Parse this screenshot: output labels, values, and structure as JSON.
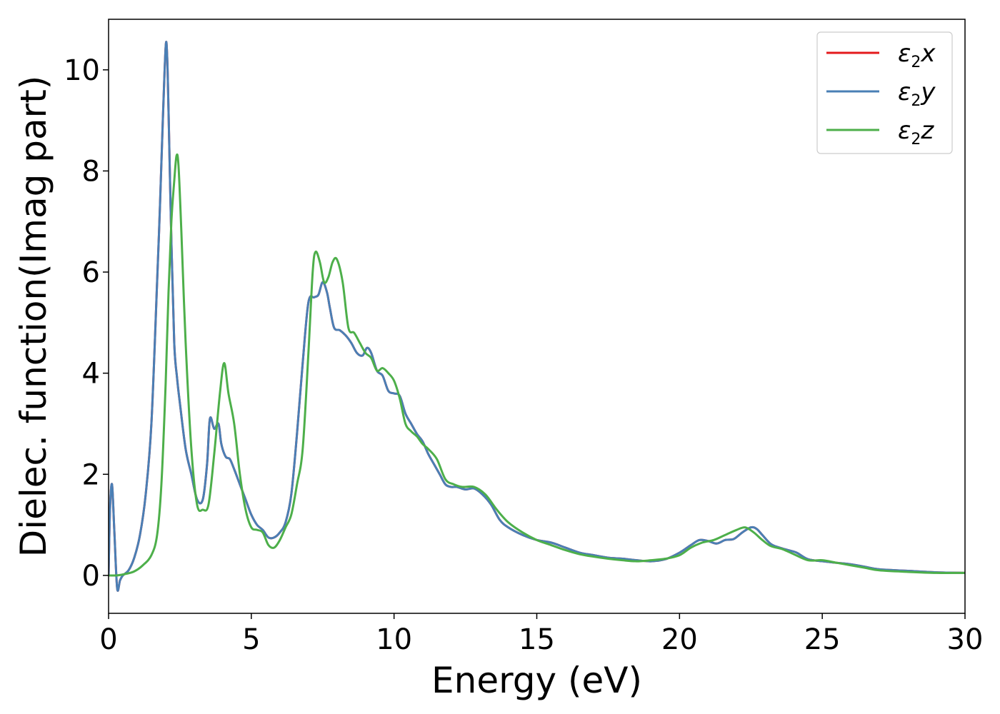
{
  "chart_data": {
    "type": "line",
    "title": "",
    "xlabel": "Energy (eV)",
    "ylabel": "Dielec. function(Imag part)",
    "xlim": [
      0,
      30
    ],
    "ylim": [
      -0.75,
      11.0
    ],
    "xticks": [
      0,
      5,
      10,
      15,
      20,
      25,
      30
    ],
    "yticks": [
      0,
      2,
      4,
      6,
      8,
      10
    ],
    "xtick_labels": [
      "0",
      "5",
      "10",
      "15",
      "20",
      "25",
      "30"
    ],
    "ytick_labels": [
      "0",
      "2",
      "4",
      "6",
      "8",
      "10"
    ],
    "grid": false,
    "legend_position": "top-right",
    "series": [
      {
        "name": "ε2x",
        "legend_base": "ε",
        "legend_sub": "2",
        "legend_var": "x",
        "color": "#e41a1c",
        "x": [
          0,
          0.05,
          0.12,
          0.2,
          0.3,
          0.4,
          0.5,
          0.7,
          0.9,
          1.1,
          1.3,
          1.5,
          1.7,
          1.8,
          1.9,
          2.0,
          2.05,
          2.1,
          2.2,
          2.3,
          2.4,
          2.5,
          2.7,
          2.9,
          3.1,
          3.3,
          3.45,
          3.55,
          3.7,
          3.85,
          3.95,
          4.1,
          4.25,
          4.4,
          4.6,
          4.8,
          5.0,
          5.2,
          5.4,
          5.6,
          5.8,
          6.0,
          6.2,
          6.4,
          6.6,
          6.8,
          7.0,
          7.2,
          7.35,
          7.5,
          7.65,
          7.75,
          7.9,
          8.1,
          8.3,
          8.5,
          8.7,
          8.9,
          9.05,
          9.2,
          9.4,
          9.6,
          9.8,
          10.0,
          10.2,
          10.4,
          10.6,
          10.8,
          11.0,
          11.2,
          11.4,
          11.6,
          11.8,
          12.0,
          12.2,
          12.5,
          12.8,
          13.1,
          13.4,
          13.7,
          14.0,
          14.5,
          15.0,
          15.5,
          16.0,
          16.5,
          17.0,
          17.5,
          18.0,
          18.5,
          19.0,
          19.5,
          20.0,
          20.4,
          20.7,
          21.0,
          21.3,
          21.6,
          21.9,
          22.2,
          22.5,
          22.7,
          22.9,
          23.2,
          23.5,
          23.8,
          24.1,
          24.5,
          25.0,
          25.5,
          26.0,
          26.5,
          27.0,
          28.0,
          29.0,
          30.0
        ],
        "y": [
          0,
          1.3,
          1.8,
          0.9,
          -0.25,
          -0.1,
          0.0,
          0.1,
          0.35,
          0.8,
          1.6,
          3.0,
          5.8,
          7.3,
          9.0,
          10.45,
          10.3,
          9.2,
          6.6,
          4.6,
          3.9,
          3.4,
          2.5,
          2.0,
          1.5,
          1.5,
          2.2,
          3.1,
          2.9,
          3.0,
          2.6,
          2.35,
          2.3,
          2.1,
          1.8,
          1.5,
          1.2,
          1.0,
          0.9,
          0.75,
          0.75,
          0.85,
          1.05,
          1.6,
          2.8,
          4.2,
          5.4,
          5.5,
          5.55,
          5.8,
          5.6,
          5.3,
          4.9,
          4.85,
          4.75,
          4.6,
          4.4,
          4.35,
          4.5,
          4.4,
          4.05,
          3.95,
          3.65,
          3.6,
          3.55,
          3.2,
          3.0,
          2.8,
          2.65,
          2.4,
          2.2,
          2.0,
          1.8,
          1.75,
          1.75,
          1.7,
          1.72,
          1.6,
          1.4,
          1.1,
          0.95,
          0.8,
          0.7,
          0.65,
          0.55,
          0.45,
          0.4,
          0.35,
          0.33,
          0.3,
          0.28,
          0.32,
          0.45,
          0.6,
          0.7,
          0.68,
          0.63,
          0.7,
          0.72,
          0.85,
          0.95,
          0.92,
          0.8,
          0.62,
          0.55,
          0.5,
          0.45,
          0.32,
          0.28,
          0.25,
          0.22,
          0.17,
          0.12,
          0.09,
          0.06,
          0.05
        ]
      },
      {
        "name": "ε2y",
        "legend_base": "ε",
        "legend_sub": "2",
        "legend_var": "y",
        "color": "#4a7fb5",
        "x": [
          0,
          0.05,
          0.12,
          0.2,
          0.3,
          0.4,
          0.5,
          0.7,
          0.9,
          1.1,
          1.3,
          1.5,
          1.7,
          1.8,
          1.9,
          2.0,
          2.05,
          2.1,
          2.2,
          2.3,
          2.4,
          2.5,
          2.7,
          2.9,
          3.1,
          3.3,
          3.45,
          3.55,
          3.7,
          3.85,
          3.95,
          4.1,
          4.25,
          4.4,
          4.6,
          4.8,
          5.0,
          5.2,
          5.4,
          5.6,
          5.8,
          6.0,
          6.2,
          6.4,
          6.6,
          6.8,
          7.0,
          7.2,
          7.35,
          7.5,
          7.65,
          7.75,
          7.9,
          8.1,
          8.3,
          8.5,
          8.7,
          8.9,
          9.05,
          9.2,
          9.4,
          9.6,
          9.8,
          10.0,
          10.2,
          10.4,
          10.6,
          10.8,
          11.0,
          11.2,
          11.4,
          11.6,
          11.8,
          12.0,
          12.2,
          12.5,
          12.8,
          13.1,
          13.4,
          13.7,
          14.0,
          14.5,
          15.0,
          15.5,
          16.0,
          16.5,
          17.0,
          17.5,
          18.0,
          18.5,
          19.0,
          19.5,
          20.0,
          20.4,
          20.7,
          21.0,
          21.3,
          21.6,
          21.9,
          22.2,
          22.5,
          22.7,
          22.9,
          23.2,
          23.5,
          23.8,
          24.1,
          24.5,
          25.0,
          25.5,
          26.0,
          26.5,
          27.0,
          28.0,
          29.0,
          30.0
        ],
        "y": [
          0,
          1.3,
          1.8,
          0.9,
          -0.25,
          -0.1,
          0.0,
          0.1,
          0.35,
          0.8,
          1.6,
          3.0,
          5.8,
          7.3,
          9.0,
          10.45,
          10.3,
          9.2,
          6.6,
          4.6,
          3.9,
          3.4,
          2.5,
          2.0,
          1.5,
          1.5,
          2.2,
          3.1,
          2.9,
          3.0,
          2.6,
          2.35,
          2.3,
          2.1,
          1.8,
          1.5,
          1.2,
          1.0,
          0.9,
          0.75,
          0.75,
          0.85,
          1.05,
          1.6,
          2.8,
          4.2,
          5.4,
          5.5,
          5.55,
          5.8,
          5.6,
          5.3,
          4.9,
          4.85,
          4.75,
          4.6,
          4.4,
          4.35,
          4.5,
          4.4,
          4.05,
          3.95,
          3.65,
          3.6,
          3.55,
          3.2,
          3.0,
          2.8,
          2.65,
          2.4,
          2.2,
          2.0,
          1.8,
          1.75,
          1.75,
          1.7,
          1.72,
          1.6,
          1.4,
          1.1,
          0.95,
          0.8,
          0.7,
          0.65,
          0.55,
          0.45,
          0.4,
          0.35,
          0.33,
          0.3,
          0.28,
          0.32,
          0.45,
          0.6,
          0.7,
          0.68,
          0.63,
          0.7,
          0.72,
          0.85,
          0.95,
          0.92,
          0.8,
          0.62,
          0.55,
          0.5,
          0.45,
          0.32,
          0.28,
          0.25,
          0.22,
          0.17,
          0.12,
          0.09,
          0.06,
          0.05
        ]
      },
      {
        "name": "ε2z",
        "legend_base": "ε",
        "legend_sub": "2",
        "legend_var": "z",
        "color": "#4daf4a",
        "x": [
          0,
          0.3,
          0.6,
          0.9,
          1.2,
          1.5,
          1.7,
          1.85,
          2.0,
          2.1,
          2.2,
          2.3,
          2.38,
          2.45,
          2.55,
          2.7,
          2.9,
          3.1,
          3.3,
          3.5,
          3.7,
          3.9,
          4.05,
          4.2,
          4.4,
          4.6,
          4.8,
          5.0,
          5.2,
          5.4,
          5.6,
          5.8,
          6.0,
          6.2,
          6.4,
          6.6,
          6.8,
          7.0,
          7.15,
          7.25,
          7.4,
          7.55,
          7.7,
          7.85,
          8.0,
          8.2,
          8.4,
          8.6,
          8.8,
          9.0,
          9.2,
          9.4,
          9.6,
          9.8,
          10.0,
          10.2,
          10.4,
          10.6,
          10.8,
          11.0,
          11.2,
          11.5,
          11.8,
          12.1,
          12.4,
          12.8,
          13.2,
          13.6,
          14.0,
          14.5,
          15.0,
          15.5,
          16.0,
          16.5,
          17.0,
          17.5,
          18.0,
          18.5,
          19.0,
          19.5,
          20.0,
          20.4,
          20.8,
          21.2,
          21.6,
          22.0,
          22.3,
          22.6,
          22.9,
          23.2,
          23.6,
          24.0,
          24.5,
          25.0,
          25.5,
          26.0,
          26.5,
          27.0,
          28.0,
          29.0,
          30.0
        ],
        "y": [
          0,
          0.0,
          0.03,
          0.08,
          0.2,
          0.4,
          0.8,
          1.8,
          3.8,
          5.6,
          7.0,
          7.8,
          8.3,
          8.1,
          6.8,
          4.6,
          2.5,
          1.4,
          1.3,
          1.4,
          2.4,
          3.6,
          4.2,
          3.6,
          3.0,
          2.0,
          1.3,
          0.95,
          0.9,
          0.85,
          0.6,
          0.55,
          0.7,
          0.95,
          1.2,
          1.8,
          2.5,
          4.4,
          6.0,
          6.4,
          6.2,
          5.8,
          5.9,
          6.2,
          6.25,
          5.8,
          4.9,
          4.8,
          4.6,
          4.4,
          4.3,
          4.05,
          4.1,
          4.0,
          3.85,
          3.5,
          3.0,
          2.85,
          2.75,
          2.6,
          2.5,
          2.3,
          1.9,
          1.8,
          1.75,
          1.75,
          1.6,
          1.3,
          1.05,
          0.85,
          0.7,
          0.6,
          0.5,
          0.42,
          0.37,
          0.33,
          0.3,
          0.28,
          0.3,
          0.33,
          0.4,
          0.55,
          0.65,
          0.7,
          0.8,
          0.9,
          0.95,
          0.85,
          0.7,
          0.58,
          0.52,
          0.42,
          0.3,
          0.3,
          0.25,
          0.2,
          0.15,
          0.1,
          0.07,
          0.05,
          0.05
        ]
      }
    ]
  }
}
